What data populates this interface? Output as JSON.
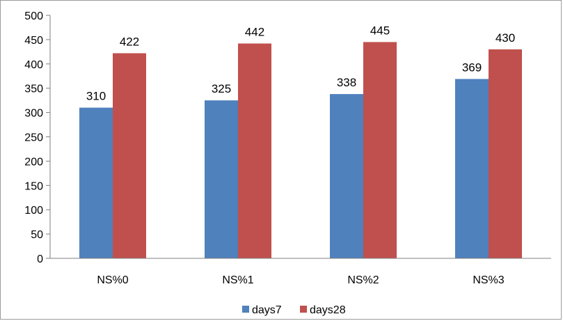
{
  "chart_data": {
    "type": "bar",
    "categories": [
      "NS%0",
      "NS%1",
      "NS%2",
      "NS%3"
    ],
    "series": [
      {
        "name": "days7",
        "values": [
          310,
          325,
          338,
          369
        ],
        "color": "#4f81bd"
      },
      {
        "name": "days28",
        "values": [
          422,
          442,
          445,
          430
        ],
        "color": "#c0504d"
      }
    ],
    "title": "",
    "xlabel": "",
    "ylabel": "",
    "ylim": [
      0,
      500
    ],
    "yticks": [
      0,
      50,
      100,
      150,
      200,
      250,
      300,
      350,
      400,
      450,
      500
    ],
    "grid": false,
    "legend_position": "bottom",
    "data_labels": true
  }
}
